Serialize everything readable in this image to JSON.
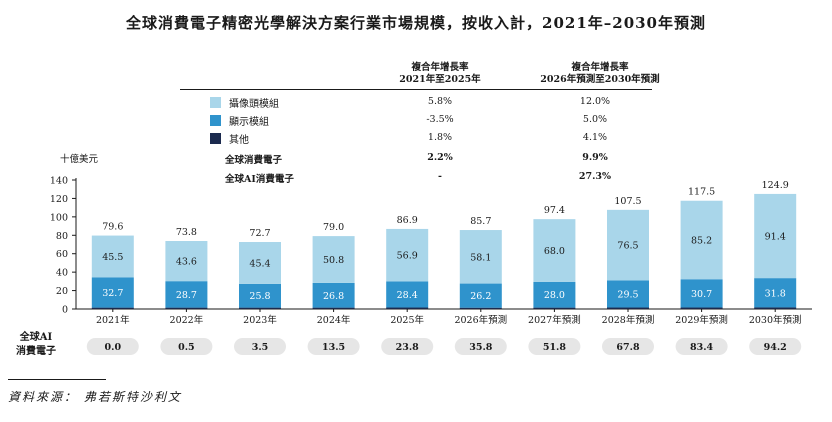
{
  "title": "全球消費電子精密光學解決方案行業市場規模，按收入計，2021年–2030年預測",
  "table": {
    "col1_header_line1": "複合年增長率",
    "col1_header_line2": "2021年至2025年",
    "col2_header_line1": "複合年增長率",
    "col2_header_line2": "2026年預測至2030年預測",
    "rows": [
      {
        "label": "攝像頭模組",
        "color": "#a9d6ea",
        "cagr1": "5.8%",
        "cagr2": "12.0%"
      },
      {
        "label": "顯示模組",
        "color": "#2f93cc",
        "cagr1": "-3.5%",
        "cagr2": "5.0%"
      },
      {
        "label": "其他",
        "color": "#1b2a4e",
        "cagr1": "1.8%",
        "cagr2": "4.1%"
      }
    ],
    "summary_rows": [
      {
        "label": "全球消費電子",
        "cagr1": "2.2%",
        "cagr2": "9.9%"
      },
      {
        "label": "全球AI消費電子",
        "cagr1": "-",
        "cagr2": "27.3%"
      }
    ]
  },
  "unit_label": "十億美元",
  "ai_row_label_line1": "全球AI",
  "ai_row_label_line2": "消費電子",
  "source": "資料來源： 弗若斯特沙利文",
  "chart_data": {
    "type": "bar",
    "stacked": true,
    "categories": [
      "2021年",
      "2022年",
      "2023年",
      "2024年",
      "2025年",
      "2026年預測",
      "2027年預測",
      "2028年預測",
      "2029年預測",
      "2030年預測"
    ],
    "series": [
      {
        "name": "其他",
        "color": "#1b2a4e",
        "values": [
          1.5,
          1.5,
          1.5,
          1.5,
          1.6,
          1.4,
          1.5,
          1.6,
          1.6,
          1.7
        ]
      },
      {
        "name": "顯示模組",
        "color": "#2f93cc",
        "values": [
          32.7,
          28.7,
          25.8,
          26.8,
          28.4,
          26.2,
          28.0,
          29.5,
          30.7,
          31.8
        ]
      },
      {
        "name": "攝像頭模組",
        "color": "#a9d6ea",
        "values": [
          45.5,
          43.6,
          45.4,
          50.8,
          56.9,
          58.1,
          68.0,
          76.5,
          85.2,
          91.4
        ]
      }
    ],
    "totals": [
      "79.6",
      "73.8",
      "72.7",
      "79.0",
      "86.9",
      "85.7",
      "97.4",
      "107.5",
      "117.5",
      "124.9"
    ],
    "ai_consumer_electronics": [
      "0.0",
      "0.5",
      "3.5",
      "13.5",
      "23.8",
      "35.8",
      "51.8",
      "67.8",
      "83.4",
      "94.2"
    ],
    "ylim": [
      0,
      140
    ],
    "yticks": [
      0,
      20,
      40,
      60,
      80,
      100,
      120,
      140
    ],
    "grid": false
  }
}
